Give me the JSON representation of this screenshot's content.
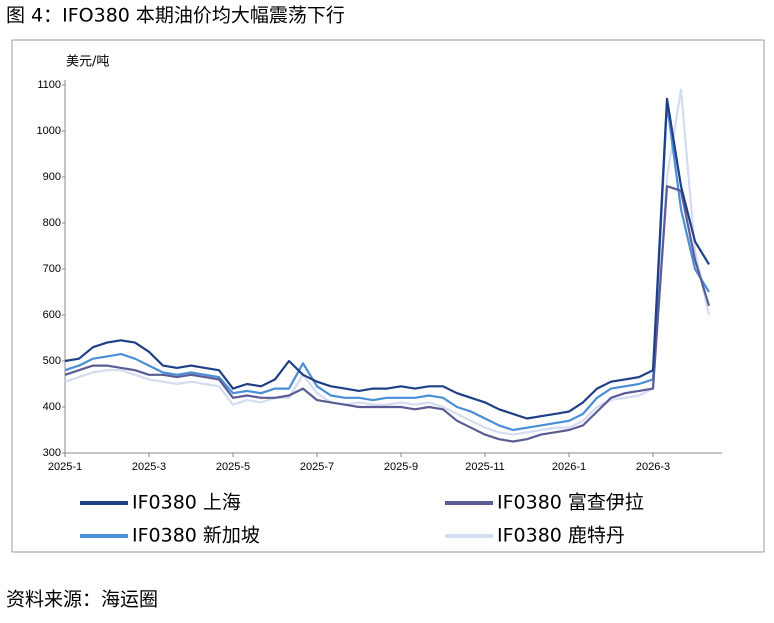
{
  "chart_data": {
    "type": "line",
    "title": "图 4：IFO380 本期油价均大幅震荡下行",
    "y_label": "美元/吨",
    "source": "资料来源：海运圈",
    "categories": [
      "2025-1",
      null,
      null,
      null,
      null,
      null,
      "2025-3",
      null,
      null,
      null,
      null,
      null,
      "2025-5",
      null,
      null,
      null,
      null,
      null,
      "2025-7",
      null,
      null,
      null,
      null,
      null,
      "2025-9",
      null,
      null,
      null,
      null,
      null,
      "2025-11",
      null,
      null,
      null,
      null,
      null,
      "2026-1",
      null,
      null,
      null,
      null,
      null,
      "2026-3",
      null,
      null,
      null,
      null
    ],
    "series": [
      {
        "name": "IF0380 上海",
        "color": "#1f3f86",
        "values": [
          500,
          505,
          530,
          540,
          545,
          540,
          520,
          490,
          485,
          490,
          485,
          480,
          440,
          450,
          445,
          460,
          500,
          470,
          455,
          445,
          440,
          435,
          440,
          440,
          445,
          440,
          445,
          445,
          430,
          420,
          410,
          395,
          385,
          375,
          380,
          385,
          390,
          410,
          440,
          455,
          460,
          465,
          480,
          1070,
          880,
          760,
          710
        ]
      },
      {
        "name": "IF0380 富查伊拉",
        "color": "#5b5b95",
        "values": [
          470,
          480,
          490,
          490,
          485,
          480,
          470,
          470,
          465,
          470,
          465,
          460,
          420,
          425,
          420,
          420,
          425,
          440,
          415,
          410,
          405,
          400,
          400,
          400,
          400,
          395,
          400,
          395,
          370,
          355,
          340,
          330,
          325,
          330,
          340,
          345,
          350,
          360,
          390,
          420,
          430,
          435,
          440,
          880,
          870,
          720,
          620
        ]
      },
      {
        "name": "IF0380 新加坡",
        "color": "#4a8fd6",
        "values": [
          480,
          490,
          505,
          510,
          515,
          505,
          490,
          475,
          470,
          475,
          470,
          465,
          430,
          435,
          430,
          440,
          440,
          495,
          445,
          425,
          420,
          420,
          415,
          420,
          420,
          420,
          425,
          420,
          400,
          390,
          375,
          360,
          350,
          355,
          360,
          365,
          370,
          385,
          420,
          440,
          445,
          450,
          460,
          1060,
          830,
          700,
          650
        ]
      },
      {
        "name": "IF0380 鹿特丹",
        "color": "#d3dcf0",
        "values": [
          455,
          465,
          475,
          480,
          480,
          470,
          460,
          455,
          450,
          455,
          450,
          445,
          405,
          415,
          410,
          420,
          420,
          470,
          430,
          410,
          405,
          410,
          405,
          405,
          410,
          405,
          410,
          400,
          385,
          370,
          355,
          345,
          340,
          345,
          350,
          355,
          355,
          370,
          400,
          415,
          420,
          425,
          440,
          900,
          1090,
          740,
          600
        ]
      }
    ],
    "ylim": [
      300,
      1100
    ],
    "yticks": [
      300,
      400,
      500,
      600,
      700,
      800,
      900,
      1000,
      1100
    ],
    "grid": false
  }
}
